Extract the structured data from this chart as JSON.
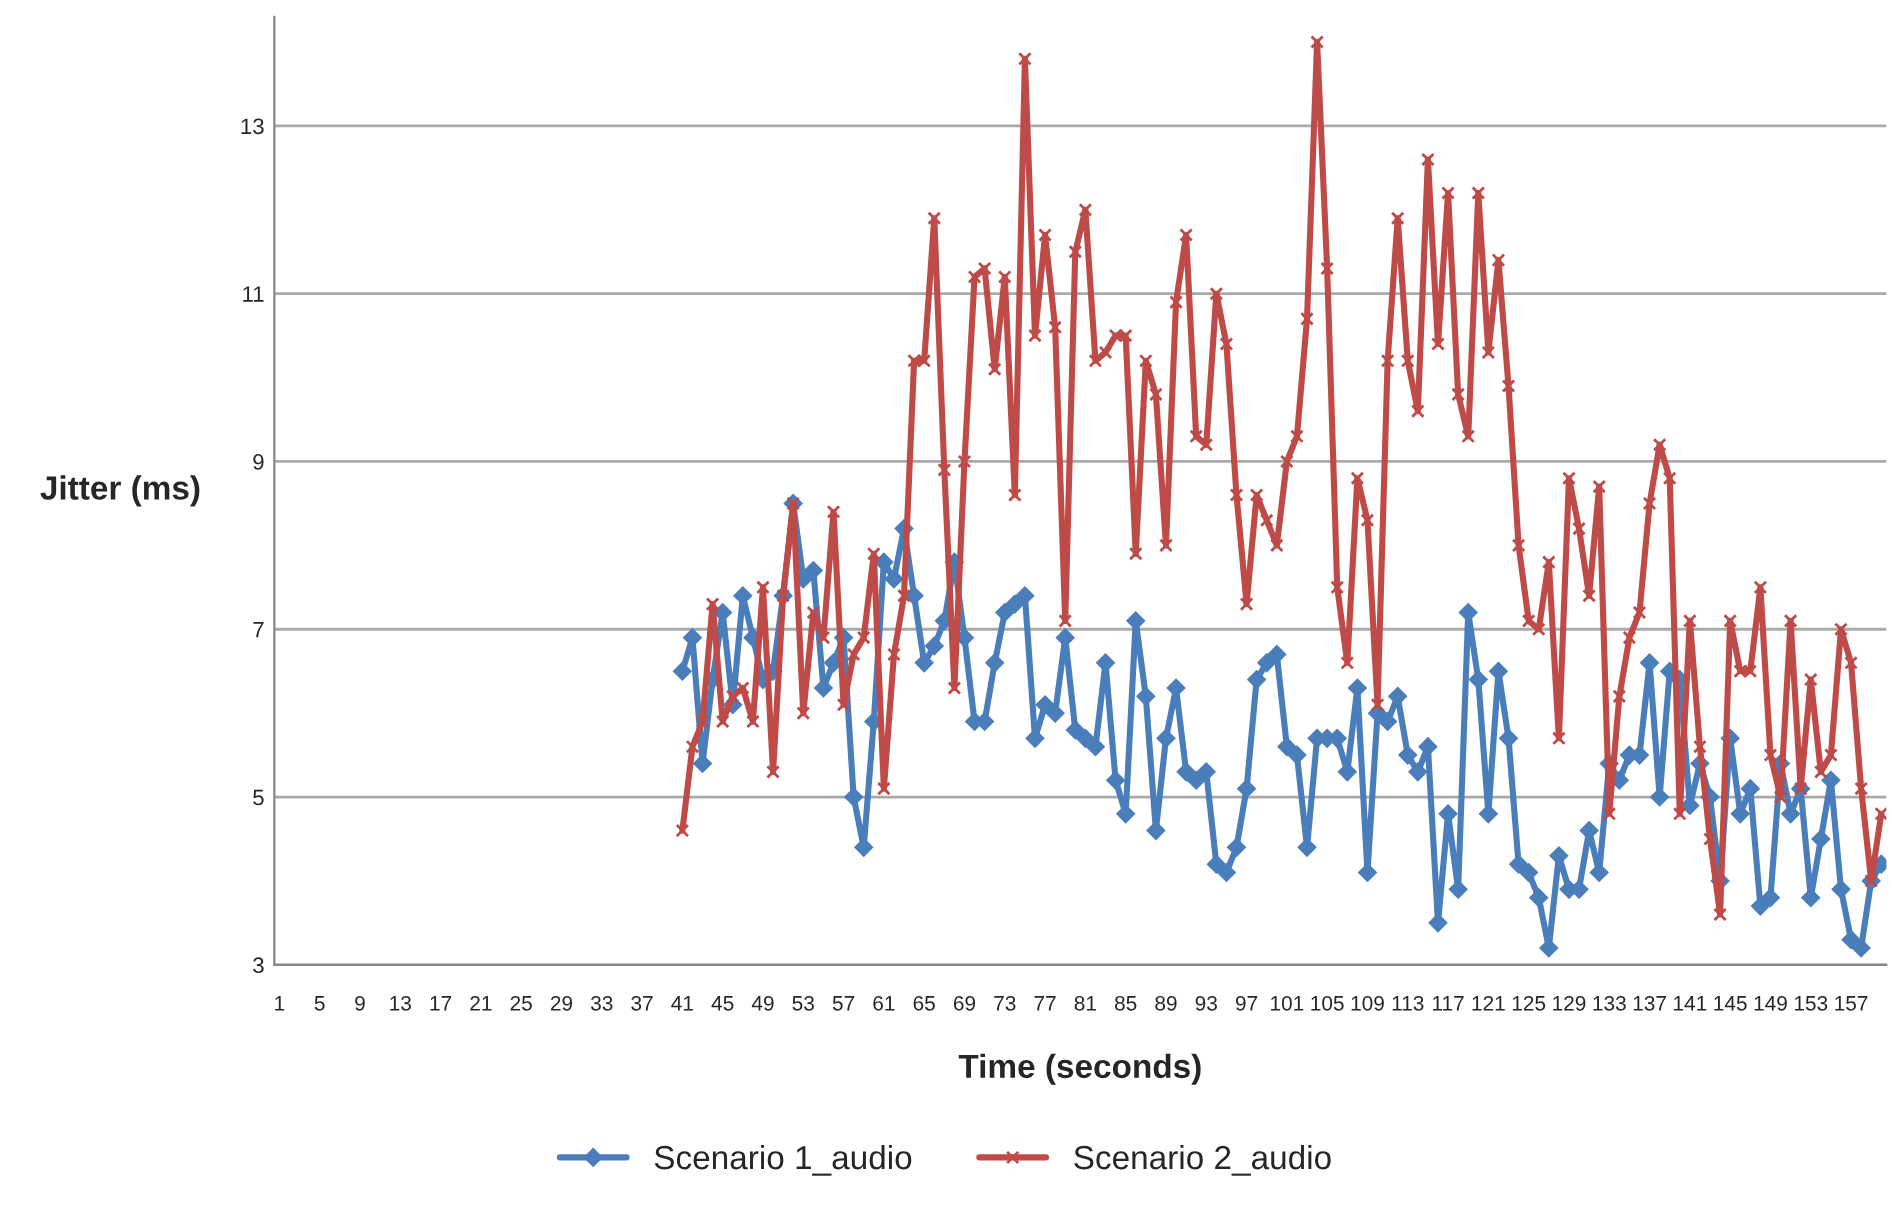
{
  "chart_data": {
    "type": "line",
    "xlabel": "Time (seconds)",
    "ylabel": "Jitter (ms)",
    "categories": [
      "1",
      null,
      null,
      null,
      "5",
      null,
      null,
      null,
      "9",
      null,
      null,
      null,
      "13",
      null,
      null,
      null,
      "17",
      null,
      null,
      null,
      "21",
      null,
      null,
      null,
      "25",
      null,
      null,
      null,
      "29",
      null,
      null,
      null,
      "33",
      null,
      null,
      null,
      "37",
      null,
      null,
      null,
      "41",
      null,
      null,
      null,
      "45",
      null,
      null,
      null,
      "49",
      null,
      null,
      null,
      "53",
      null,
      null,
      null,
      "57",
      null,
      null,
      null,
      "61",
      null,
      null,
      null,
      "65",
      null,
      null,
      null,
      "69",
      null,
      null,
      null,
      "73",
      null,
      null,
      null,
      "77",
      null,
      null,
      null,
      "81",
      null,
      null,
      null,
      "85",
      null,
      null,
      null,
      "89",
      null,
      null,
      null,
      "93",
      null,
      null,
      null,
      "97",
      null,
      null,
      null,
      "101",
      null,
      null,
      null,
      "105",
      null,
      null,
      null,
      "109",
      null,
      null,
      null,
      "113",
      null,
      null,
      null,
      "117",
      null,
      null,
      null,
      "121",
      null,
      null,
      null,
      "125",
      null,
      null,
      null,
      "129",
      null,
      null,
      null,
      "133",
      null,
      null,
      null,
      "137",
      null,
      null,
      null,
      "141",
      null,
      null,
      null,
      "145",
      null,
      null,
      null,
      "149",
      null,
      null,
      null,
      "153",
      null,
      null,
      null,
      "157",
      null,
      null,
      null
    ],
    "series": [
      {
        "name": "Scenario 1_audio",
        "color": "#4a7ebb",
        "marker": "diamond",
        "values": [
          null,
          null,
          null,
          null,
          null,
          null,
          null,
          null,
          null,
          null,
          null,
          null,
          null,
          null,
          null,
          null,
          null,
          null,
          null,
          null,
          null,
          null,
          null,
          null,
          null,
          null,
          null,
          null,
          null,
          null,
          null,
          null,
          null,
          null,
          null,
          null,
          null,
          null,
          null,
          null,
          6.5,
          6.9,
          5.4,
          6.4,
          7.2,
          6.1,
          7.4,
          6.9,
          6.4,
          6.5,
          7.4,
          8.5,
          7.6,
          7.7,
          6.3,
          6.6,
          6.9,
          5.0,
          4.4,
          5.9,
          7.8,
          7.6,
          8.2,
          7.4,
          6.6,
          6.8,
          7.1,
          7.8,
          6.9,
          5.9,
          5.9,
          6.6,
          7.2,
          7.3,
          7.4,
          5.7,
          6.1,
          6.0,
          6.9,
          5.8,
          5.7,
          5.6,
          6.6,
          5.2,
          4.8,
          7.1,
          6.2,
          4.6,
          5.7,
          6.3,
          5.3,
          5.2,
          5.3,
          4.2,
          4.1,
          4.4,
          5.1,
          6.4,
          6.6,
          6.7,
          5.6,
          5.5,
          4.4,
          5.7,
          5.7,
          5.7,
          5.3,
          6.3,
          4.1,
          6.0,
          5.9,
          6.2,
          5.5,
          5.3,
          5.6,
          3.5,
          4.8,
          3.9,
          7.2,
          6.4,
          4.8,
          6.5,
          5.7,
          4.2,
          4.1,
          3.8,
          3.2,
          4.3,
          3.9,
          3.9,
          4.6,
          4.1,
          5.4,
          5.2,
          5.5,
          5.5,
          6.6,
          5.0,
          6.5,
          6.4,
          4.9,
          5.4,
          5.0,
          4.0,
          5.7,
          4.8,
          5.1,
          3.7,
          3.8,
          5.4,
          4.8,
          5.1,
          3.8,
          4.5,
          5.2,
          3.9,
          3.3,
          3.2,
          4.0,
          4.2
        ]
      },
      {
        "name": "Scenario 2_audio",
        "color": "#be4b48",
        "marker": "cross",
        "values": [
          null,
          null,
          null,
          null,
          null,
          null,
          null,
          null,
          null,
          null,
          null,
          null,
          null,
          null,
          null,
          null,
          null,
          null,
          null,
          null,
          null,
          null,
          null,
          null,
          null,
          null,
          null,
          null,
          null,
          null,
          null,
          null,
          null,
          null,
          null,
          null,
          null,
          null,
          null,
          null,
          4.6,
          5.6,
          5.9,
          7.3,
          5.9,
          6.2,
          6.3,
          5.9,
          7.5,
          5.3,
          7.4,
          8.5,
          6.0,
          7.2,
          6.9,
          8.4,
          6.1,
          6.7,
          6.9,
          7.9,
          5.1,
          6.7,
          7.4,
          10.2,
          10.2,
          11.9,
          8.9,
          6.3,
          9.0,
          11.2,
          11.3,
          10.1,
          11.2,
          8.6,
          13.8,
          10.5,
          11.7,
          10.6,
          7.1,
          11.5,
          12.0,
          10.2,
          10.3,
          10.5,
          10.5,
          7.9,
          10.2,
          9.8,
          8.0,
          10.9,
          11.7,
          9.3,
          9.2,
          11.0,
          10.4,
          8.6,
          7.3,
          8.6,
          8.3,
          8.0,
          9.0,
          9.3,
          10.7,
          14.0,
          11.3,
          7.5,
          6.6,
          8.8,
          8.3,
          6.1,
          10.2,
          11.9,
          10.2,
          9.6,
          12.6,
          10.4,
          12.2,
          9.8,
          9.3,
          12.2,
          10.3,
          11.4,
          9.9,
          8.0,
          7.1,
          7.0,
          7.8,
          5.7,
          8.8,
          8.2,
          7.4,
          8.7,
          4.8,
          6.2,
          6.9,
          7.2,
          8.5,
          9.2,
          8.8,
          4.8,
          7.1,
          5.6,
          4.5,
          3.6,
          7.1,
          6.5,
          6.5,
          7.5,
          5.5,
          5.0,
          7.1,
          5.1,
          6.4,
          5.3,
          5.5,
          7.0,
          6.6,
          5.1,
          4.0,
          4.8
        ]
      }
    ],
    "ylim": [
      3,
      14.3
    ],
    "yticks": [
      3,
      5,
      7,
      9,
      11,
      13
    ],
    "grid": "y",
    "legend": "bottom",
    "line_style": "solid"
  }
}
